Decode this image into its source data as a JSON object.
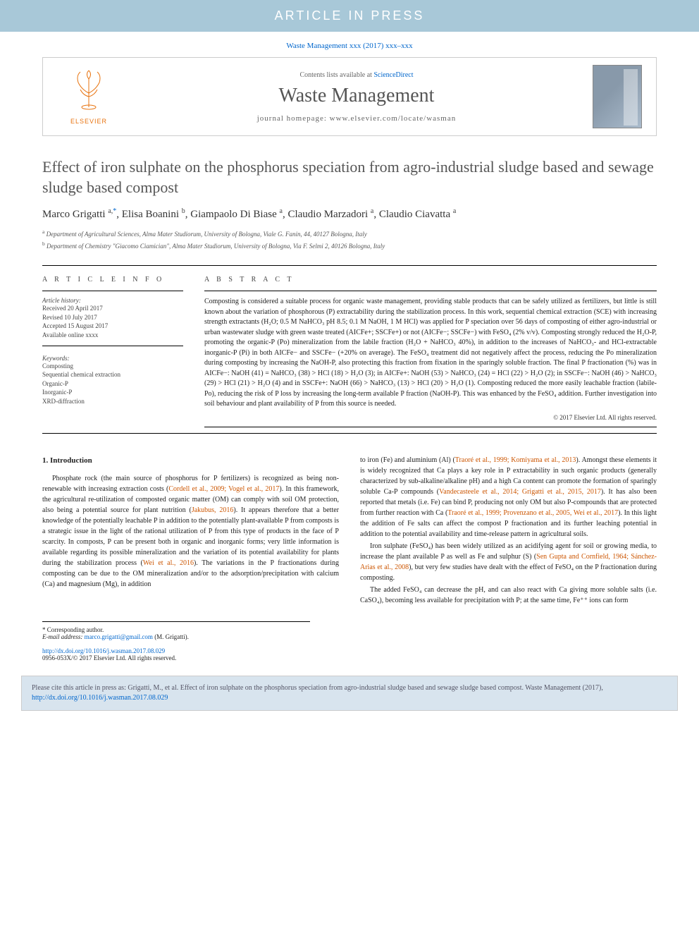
{
  "banner": {
    "text": "ARTICLE IN PRESS"
  },
  "citation_header": {
    "text": "Waste Management xxx (2017) xxx–xxx",
    "link_color": "#0066cc"
  },
  "header": {
    "contents_text": "Contents lists available at ",
    "contents_link": "ScienceDirect",
    "journal_name": "Waste Management",
    "homepage_label": "journal homepage: www.elsevier.com/locate/wasman",
    "elsevier_text": "ELSEVIER"
  },
  "title": "Effect of iron sulphate on the phosphorus speciation from agro-industrial sludge based and sewage sludge based compost",
  "authors_html": "Marco Grigatti <sup>a,</sup><sup class='corr'>*</sup>, Elisa Boanini <sup>b</sup>, Giampaolo Di Biase <sup>a</sup>, Claudio Marzadori <sup>a</sup>, Claudio Ciavatta <sup>a</sup>",
  "affiliations": [
    "a Department of Agricultural Sciences, Alma Mater Studiorum, University of Bologna, Viale G. Fanin, 44, 40127 Bologna, Italy",
    "b Department of Chemistry \"Giacomo Ciamician\", Alma Mater Studiorum, University of Bologna, Via F. Selmi 2, 40126 Bologna, Italy"
  ],
  "article_info": {
    "heading": "A R T I C L E   I N F O",
    "history_label": "Article history:",
    "history": [
      "Received 20 April 2017",
      "Revised 10 July 2017",
      "Accepted 15 August 2017",
      "Available online xxxx"
    ],
    "keywords_label": "Keywords:",
    "keywords": [
      "Composting",
      "Sequential chemical extraction",
      "Organic-P",
      "Inorganic-P",
      "XRD-diffraction"
    ]
  },
  "abstract": {
    "heading": "A B S T R A C T",
    "text": "Composting is considered a suitable process for organic waste management, providing stable products that can be safely utilized as fertilizers, but little is still known about the variation of phosphorous (P) extractability during the stabilization process. In this work, sequential chemical extraction (SCE) with increasing strength extractants (H₂O; 0.5 M NaHCO₃ pH 8.5; 0.1 M NaOH, 1 M HCl) was applied for P speciation over 56 days of composting of either agro-industrial or urban wastewater sludge with green waste treated (AICFe+; SSCFe+) or not (AICFe−; SSCFe−) with FeSO₄ (2% v/v). Composting strongly reduced the H₂O-P, promoting the organic-P (Po) mineralization from the labile fraction (H₂O + NaHCO₃ 40%), in addition to the increases of NaHCO₃- and HCl-extractable inorganic-P (Pi) in both AICFe− and SSCFe− (+20% on average). The FeSO₄ treatment did not negatively affect the process, reducing the Po mineralization during composting by increasing the NaOH-P, also protecting this fraction from fixation in the sparingly soluble fraction. The final P fractionation (%) was in AICFe−: NaOH (41) = NaHCO₃ (38) > HCl (18) > H₂O (3); in AICFe+: NaOH (53) > NaHCO₃ (24) = HCl (22) > H₂O (2); in SSCFe−: NaOH (46) > NaHCO₃ (29) > HCl (21) > H₂O (4) and in SSCFe+: NaOH (66) > NaHCO₃ (13) > HCl (20) > H₂O (1). Composting reduced the more easily leachable fraction (labile-Po), reducing the risk of P loss by increasing the long-term available P fraction (NaOH-P). This was enhanced by the FeSO₄ addition. Further investigation into soil behaviour and plant availability of P from this source is needed.",
    "copyright": "© 2017 Elsevier Ltd. All rights reserved."
  },
  "body": {
    "section1_heading": "1. Introduction",
    "col1_p1_a": "Phosphate rock (the main source of phosphorus for P fertilizers) is recognized as being non-renewable with increasing extraction costs (",
    "col1_p1_link1": "Cordell et al., 2009; Vogel et al., 2017",
    "col1_p1_b": "). In this framework, the agricultural re-utilization of composted organic matter (OM) can comply with soil OM protection, also being a potential source for plant nutrition (",
    "col1_p1_link2": "Jakubus, 2016",
    "col1_p1_c": "). It appears therefore that a better knowledge of the potentially leachable P in addition to the potentially plant-available P from composts is a strategic issue in the light of the rational utilization of P from this type of products in the face of P scarcity. In composts, P can be present both in organic and inorganic forms; very little information is available regarding its possible mineralization and the variation of its potential availability for plants during the stabilization process (",
    "col1_p1_link3": "Wei et al., 2016",
    "col1_p1_d": "). The variations in the P fractionations during composting can be due to the OM mineralization and/or to the adsorption/precipitation with calcium (Ca) and magnesium (Mg), in addition",
    "col2_p1_a": "to iron (Fe) and aluminium (Al) (",
    "col2_p1_link1": "Traoré et al., 1999; Komiyama et al., 2013",
    "col2_p1_b": "). Amongst these elements it is widely recognized that Ca plays a key role in P extractability in such organic products (generally characterized by sub-alkaline/alkaline pH) and a high Ca content can promote the formation of sparingly soluble Ca-P compounds (",
    "col2_p1_link2": "Vandecasteele et al., 2014; Grigatti et al., 2015, 2017",
    "col2_p1_c": "). It has also been reported that metals (i.e. Fe) can bind P, producing not only OM but also P-compounds that are protected from further reaction with Ca (",
    "col2_p1_link3": "Traoré et al., 1999; Provenzano et al., 2005, Wei et al., 2017",
    "col2_p1_d": "). In this light the addition of Fe salts can affect the compost P fractionation and its further leaching potential in addition to the potential availability and time-release pattern in agricultural soils.",
    "col2_p2_a": "Iron sulphate (FeSO₄) has been widely utilized as an acidifying agent for soil or growing media, to increase the plant available P as well as Fe and sulphur (S) (",
    "col2_p2_link1": "Sen Gupta and Cornfield, 1964; Sánchez-Arias et al., 2008",
    "col2_p2_b": "), but very few studies have dealt with the effect of FeSO₄ on the P fractionation during composting.",
    "col2_p3": "The added FeSO₄ can decrease the pH, and can also react with Ca giving more soluble salts (i.e. CaSO₄), becoming less available for precipitation with P; at the same time, Fe⁺⁺ ions can form"
  },
  "footnotes": {
    "corr_label": "* Corresponding author.",
    "email_label": "E-mail address: ",
    "email": "marco.grigatti@gmail.com",
    "email_suffix": " (M. Grigatti)."
  },
  "doi": {
    "url": "http://dx.doi.org/10.1016/j.wasman.2017.08.029",
    "issn_line": "0956-053X/© 2017 Elsevier Ltd. All rights reserved."
  },
  "cite_box": {
    "text_a": "Please cite this article in press as: Grigatti, M., et al. Effect of iron sulphate on the phosphorus speciation from agro-industrial sludge based and sewage sludge based compost. Waste Management (2017), ",
    "link": "http://dx.doi.org/10.1016/j.wasman.2017.08.029"
  },
  "colors": {
    "banner_bg": "#a8c8d8",
    "link_blue": "#0066cc",
    "citation_orange": "#cc5500",
    "elsevier_orange": "#e8730f",
    "cite_box_bg": "#d8e4ee"
  }
}
